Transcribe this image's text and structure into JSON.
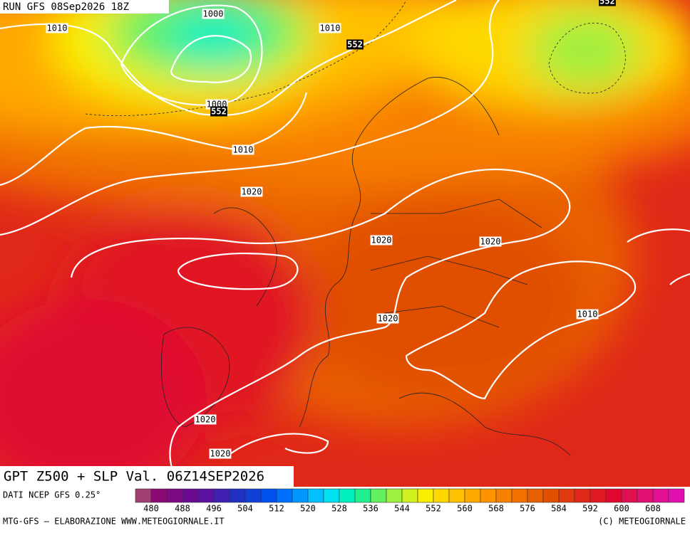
{
  "header": {
    "run": "RUN GFS 08Sep2026 18Z"
  },
  "footer": {
    "title": "GPT Z500 + SLP Val. 06Z14SEP2026",
    "source": "DATI NCEP GFS 0.25°",
    "credit": "MTG-GFS – ELABORAZIONE WWW.METEOGIORNALE.IT",
    "copyright": "(C) METEOGIORNALE"
  },
  "legend": {
    "colors": [
      "#a04070",
      "#8b0a73",
      "#7d0a80",
      "#6a0a90",
      "#5a10a0",
      "#4020b0",
      "#2030c0",
      "#1040d8",
      "#0050f0",
      "#0070ff",
      "#0098ff",
      "#00c0ff",
      "#00e0f0",
      "#00f0c0",
      "#20f090",
      "#60f060",
      "#a0f040",
      "#d0f020",
      "#f8f000",
      "#ffd800",
      "#ffc000",
      "#ffa800",
      "#ff9400",
      "#f88000",
      "#f07000",
      "#e86000",
      "#e05000",
      "#e03a10",
      "#e02818",
      "#e01820",
      "#e00830",
      "#e01050",
      "#e01070",
      "#e01090",
      "#e010b0"
    ],
    "labels": [
      480,
      488,
      496,
      504,
      512,
      520,
      528,
      536,
      544,
      552,
      560,
      568,
      576,
      584,
      592,
      600,
      608
    ]
  },
  "contour_labels": [
    "552",
    "1000",
    "1010",
    "1010",
    "552",
    "1000",
    "552",
    "1010",
    "1020",
    "1020",
    "1020",
    "1020",
    "1010",
    "1020",
    "1020"
  ]
}
